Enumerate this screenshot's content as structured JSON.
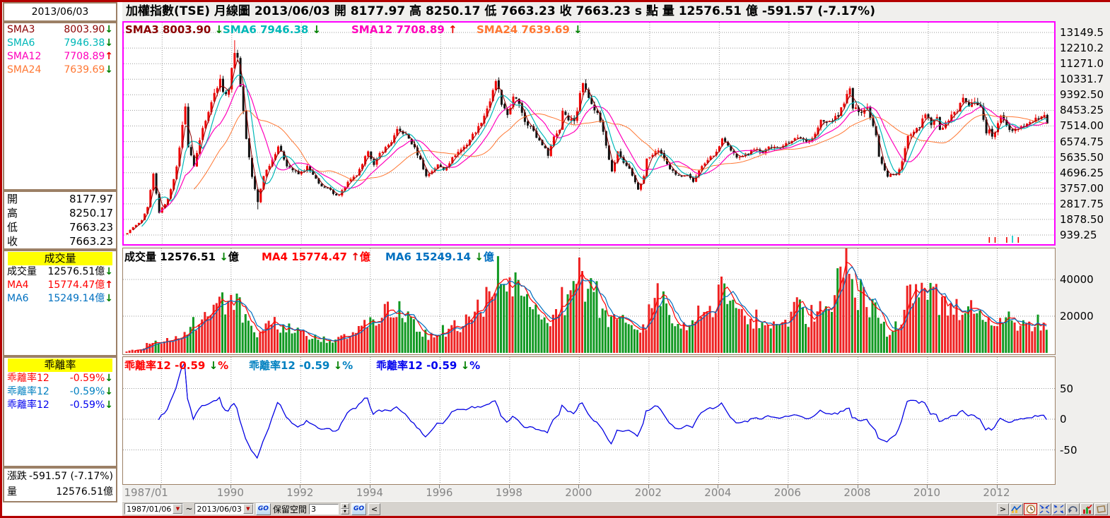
{
  "header": {
    "title_line": "加權指數(TSE)  月線圖  2013/06/03  開 8177.97  高 8250.17  低 7663.23  收 7663.23 s 點  量 12576.51 億  -591.57 (-7.17%)"
  },
  "colors": {
    "sma3": "#8b0000",
    "sma6": "#00b8b8",
    "sma12": "#ff00bb",
    "sma24": "#ff7733",
    "candle_up": "#ee0000",
    "candle_down": "#111111",
    "vol_up": "#ee2222",
    "vol_down": "#119922",
    "vol_ma4": "#ff0000",
    "vol_ma6": "#0070c0",
    "bias1": "#ff0000",
    "bias2": "#0080c0",
    "bias3": "#0000ee",
    "main_border": "#ff00ff",
    "panel_border": "#9c8066",
    "window_border": "#b40000",
    "yellow_header": "#ffff00",
    "arrow_up": "#e80000",
    "arrow_down": "#008000"
  },
  "sidebar": {
    "date": "2013/06/03",
    "sma_rows": [
      {
        "label": "SMA3",
        "value": "8003.90",
        "unit": "",
        "dir": "down",
        "color": "#8b0000"
      },
      {
        "label": "SMA6",
        "value": "7946.38",
        "unit": "",
        "dir": "down",
        "color": "#00b8b8"
      },
      {
        "label": "SMA12",
        "value": "7708.89",
        "unit": "",
        "dir": "up",
        "color": "#ff00bb"
      },
      {
        "label": "SMA24",
        "value": "7639.69",
        "unit": "",
        "dir": "down",
        "color": "#ff7733"
      }
    ],
    "ohlc_rows": [
      {
        "label": "開",
        "value": "8177.97"
      },
      {
        "label": "高",
        "value": "8250.17"
      },
      {
        "label": "低",
        "value": "7663.23"
      },
      {
        "label": "收",
        "value": "7663.23"
      }
    ],
    "volume_header": "成交量",
    "volume_rows": [
      {
        "label": "成交量",
        "value": "12576.51",
        "unit": "億",
        "dir": "down",
        "color": "#000000"
      },
      {
        "label": "MA4",
        "value": "15774.47",
        "unit": "億",
        "dir": "up",
        "color": "#ff0000"
      },
      {
        "label": "MA6",
        "value": "15249.14",
        "unit": "億",
        "dir": "down",
        "color": "#0070c0"
      }
    ],
    "bias_header": "乖離率",
    "bias_rows": [
      {
        "label": "乖離率12",
        "value": "-0.59",
        "unit": "%",
        "dir": "down",
        "color": "#ff0000"
      },
      {
        "label": "乖離率12",
        "value": "-0.59",
        "unit": "%",
        "dir": "down",
        "color": "#0080c0"
      },
      {
        "label": "乖離率12",
        "value": "-0.59",
        "unit": "%",
        "dir": "down",
        "color": "#0000ee"
      }
    ],
    "change_rows": [
      {
        "label": "漲跌",
        "value": "-591.57 (-7.17%)"
      },
      {
        "label": "量",
        "value": "12576.51億"
      }
    ]
  },
  "main_chart": {
    "legend": [
      {
        "label": "SMA3",
        "value": "8003.90",
        "unit": "",
        "dir": "down",
        "color": "#8b0000"
      },
      {
        "label": "SMA6",
        "value": "7946.38",
        "unit": "",
        "dir": "down",
        "color": "#00b8b8"
      },
      {
        "label": "SMA12",
        "value": "7708.89",
        "unit": "",
        "dir": "up",
        "color": "#ff00bb"
      },
      {
        "label": "SMA24",
        "value": "7639.69",
        "unit": "",
        "dir": "down",
        "color": "#ff7733"
      }
    ],
    "y_axis": [
      {
        "label": "13149.5",
        "value": 13149.5
      },
      {
        "label": "12210.2",
        "value": 12210.25
      },
      {
        "label": "11271.0",
        "value": 11271.0
      },
      {
        "label": "10331.7",
        "value": 10331.75
      },
      {
        "label": "9392.50",
        "value": 9392.5
      },
      {
        "label": "8453.25",
        "value": 8453.25
      },
      {
        "label": "7514.00",
        "value": 7514.0
      },
      {
        "label": "6574.75",
        "value": 6574.75
      },
      {
        "label": "5635.50",
        "value": 5635.5
      },
      {
        "label": "4696.25",
        "value": 4696.25
      },
      {
        "label": "3757.00",
        "value": 3757.0
      },
      {
        "label": "2817.75",
        "value": 2817.75
      },
      {
        "label": "1878.50",
        "value": 1878.5
      },
      {
        "label": "939.25",
        "value": 939.25
      }
    ]
  },
  "volume_chart": {
    "legend": [
      {
        "label": "成交量",
        "value": "12576.51",
        "unit": "億",
        "dir": "down",
        "color": "#000000"
      },
      {
        "label": "MA4",
        "value": "15774.47",
        "unit": "億",
        "dir": "up",
        "color": "#ff0000"
      },
      {
        "label": "MA6",
        "value": "15249.14",
        "unit": "億",
        "dir": "down",
        "color": "#0070c0"
      }
    ],
    "y_axis": [
      {
        "label": "40000",
        "value": 40000
      },
      {
        "label": "20000",
        "value": 20000
      }
    ]
  },
  "bias_chart": {
    "legend": [
      {
        "label": "乖離率12",
        "value": "-0.59",
        "unit": "%",
        "dir": "down",
        "color": "#ff0000"
      },
      {
        "label": "乖離率12",
        "value": "-0.59",
        "unit": "%",
        "dir": "down",
        "color": "#0080c0"
      },
      {
        "label": "乖離率12",
        "value": "-0.59",
        "unit": "%",
        "dir": "down",
        "color": "#0000ee"
      }
    ],
    "y_axis": [
      {
        "label": "50",
        "value": 50
      },
      {
        "label": "0",
        "value": 0
      },
      {
        "label": "-50",
        "value": -50
      }
    ]
  },
  "x_axis": {
    "labels": [
      {
        "label": "1987/01",
        "month": 7
      },
      {
        "label": "1990",
        "month": 36
      },
      {
        "label": "1992",
        "month": 60
      },
      {
        "label": "1994",
        "month": 84
      },
      {
        "label": "1996",
        "month": 108
      },
      {
        "label": "1998",
        "month": 132
      },
      {
        "label": "2000",
        "month": 156
      },
      {
        "label": "2002",
        "month": 180
      },
      {
        "label": "2004",
        "month": 204
      },
      {
        "label": "2006",
        "month": 228
      },
      {
        "label": "2008",
        "month": 252
      },
      {
        "label": "2010",
        "month": 276
      },
      {
        "label": "2012",
        "month": 300
      }
    ]
  },
  "toolbar": {
    "date_from": "1987/01/06",
    "tilde": "~",
    "date_to": "2013/06/03",
    "go_label": "GO",
    "reserve_label": "保留空間",
    "reserve_value": "3",
    "back_label": "<",
    "forward_label": ">",
    "icons": [
      "line-chart-icon",
      "clock-icon",
      "collapse-icon",
      "expand-icon",
      "undo-icon",
      "bar-chart-icon",
      "new-window-icon"
    ]
  },
  "chart_data": {
    "type": "candlestick",
    "instrument": "加權指數(TSE)",
    "timeframe": "月線圖",
    "x_range": [
      "1987/01",
      "2013/06"
    ],
    "months": 318,
    "price_axis": {
      "min": 0,
      "max": 13149.5,
      "tick_step": 939.25
    },
    "sma_periods": [
      3,
      6,
      12,
      24
    ],
    "sma_values": {
      "SMA3": 8003.9,
      "SMA6": 7946.38,
      "SMA12": 7708.89,
      "SMA24": 7639.69
    },
    "volume_ma_periods": [
      4,
      6
    ],
    "volume_ma_values": {
      "MA4": 15774.47,
      "MA6": 15249.14
    },
    "bias_period": 12,
    "bias_last": -0.59,
    "last_bar": {
      "open": 8177.97,
      "high": 8250.17,
      "low": 7663.23,
      "close": 7663.23,
      "volume": 12576.51,
      "change": -591.57,
      "change_pct": -7.17
    },
    "close_anchors": [
      [
        0,
        1063
      ],
      [
        2,
        1405
      ],
      [
        5,
        1800
      ],
      [
        7,
        2600
      ],
      [
        9,
        4600
      ],
      [
        10,
        3420
      ],
      [
        11,
        2298
      ],
      [
        14,
        3100
      ],
      [
        17,
        5000
      ],
      [
        20,
        8790
      ],
      [
        21,
        6250
      ],
      [
        23,
        5119
      ],
      [
        26,
        7390
      ],
      [
        29,
        9000
      ],
      [
        32,
        10403
      ],
      [
        33,
        9500
      ],
      [
        35,
        9624
      ],
      [
        36,
        11162
      ],
      [
        37,
        11983
      ],
      [
        38,
        11500
      ],
      [
        39,
        10000
      ],
      [
        41,
        6775
      ],
      [
        43,
        4450
      ],
      [
        45,
        2912
      ],
      [
        47,
        4530
      ],
      [
        50,
        5500
      ],
      [
        52,
        6305
      ],
      [
        55,
        5150
      ],
      [
        57,
        4855
      ],
      [
        59,
        4600
      ],
      [
        61,
        4850
      ],
      [
        62,
        5050
      ],
      [
        64,
        4550
      ],
      [
        66,
        4025
      ],
      [
        68,
        3800
      ],
      [
        70,
        3650
      ],
      [
        71,
        3377
      ],
      [
        73,
        3375
      ],
      [
        76,
        4120
      ],
      [
        79,
        4555
      ],
      [
        81,
        5150
      ],
      [
        83,
        6070
      ],
      [
        85,
        5125
      ],
      [
        87,
        5850
      ],
      [
        89,
        6200
      ],
      [
        91,
        6575
      ],
      [
        93,
        7228
      ],
      [
        95,
        7111
      ],
      [
        97,
        6750
      ],
      [
        99,
        6155
      ],
      [
        101,
        5450
      ],
      [
        103,
        4474
      ],
      [
        105,
        4810
      ],
      [
        107,
        5158
      ],
      [
        109,
        4888
      ],
      [
        111,
        5320
      ],
      [
        113,
        5800
      ],
      [
        115,
        6100
      ],
      [
        117,
        6425
      ],
      [
        119,
        6982
      ],
      [
        121,
        7434
      ],
      [
        123,
        8163
      ],
      [
        125,
        9030
      ],
      [
        127,
        10116
      ],
      [
        128,
        9756
      ],
      [
        129,
        8708
      ],
      [
        131,
        8187
      ],
      [
        133,
        9202
      ],
      [
        135,
        8900
      ],
      [
        137,
        7825
      ],
      [
        139,
        7488
      ],
      [
        141,
        6833
      ],
      [
        143,
        6418
      ],
      [
        145,
        5798
      ],
      [
        147,
        6881
      ],
      [
        149,
        7316
      ],
      [
        150,
        8467
      ],
      [
        152,
        7970
      ],
      [
        154,
        7866
      ],
      [
        155,
        8448
      ],
      [
        156,
        9437
      ],
      [
        157,
        10128
      ],
      [
        158,
        9854
      ],
      [
        160,
        8777
      ],
      [
        162,
        8265
      ],
      [
        164,
        7250
      ],
      [
        166,
        5544
      ],
      [
        167,
        4739
      ],
      [
        169,
        5936
      ],
      [
        171,
        5328
      ],
      [
        173,
        4900
      ],
      [
        175,
        4176
      ],
      [
        176,
        3636
      ],
      [
        178,
        4441
      ],
      [
        179,
        5551
      ],
      [
        181,
        5850
      ],
      [
        183,
        6065
      ],
      [
        185,
        5530
      ],
      [
        187,
        4932
      ],
      [
        189,
        4579
      ],
      [
        191,
        4452
      ],
      [
        193,
        4521
      ],
      [
        195,
        4139
      ],
      [
        197,
        4872
      ],
      [
        199,
        5250
      ],
      [
        201,
        5645
      ],
      [
        203,
        5890
      ],
      [
        205,
        6750
      ],
      [
        206,
        6522
      ],
      [
        208,
        5977
      ],
      [
        210,
        5655
      ],
      [
        212,
        5765
      ],
      [
        214,
        5845
      ],
      [
        215,
        6139
      ],
      [
        217,
        6104
      ],
      [
        219,
        5860
      ],
      [
        221,
        6241
      ],
      [
        223,
        6312
      ],
      [
        225,
        6118
      ],
      [
        227,
        6548
      ],
      [
        229,
        6561
      ],
      [
        231,
        6847
      ],
      [
        233,
        6704
      ],
      [
        235,
        6611
      ],
      [
        237,
        7021
      ],
      [
        239,
        7824
      ],
      [
        241,
        7699
      ],
      [
        243,
        7884
      ],
      [
        245,
        8145
      ],
      [
        247,
        8982
      ],
      [
        249,
        9711
      ],
      [
        250,
        8586
      ],
      [
        251,
        8506
      ],
      [
        253,
        8412
      ],
      [
        255,
        8619
      ],
      [
        257,
        7523
      ],
      [
        258,
        7024
      ],
      [
        259,
        5719
      ],
      [
        261,
        4870
      ],
      [
        262,
        4460
      ],
      [
        263,
        4591
      ],
      [
        265,
        4557
      ],
      [
        267,
        5390
      ],
      [
        269,
        6890
      ],
      [
        271,
        7077
      ],
      [
        273,
        7509
      ],
      [
        275,
        8188
      ],
      [
        277,
        7608
      ],
      [
        279,
        8004
      ],
      [
        280,
        7374
      ],
      [
        282,
        7616
      ],
      [
        284,
        8237
      ],
      [
        286,
        8372
      ],
      [
        287,
        8972
      ],
      [
        288,
        9145
      ],
      [
        290,
        8683
      ],
      [
        292,
        9062
      ],
      [
        294,
        8652
      ],
      [
        296,
        7148
      ],
      [
        297,
        7216
      ],
      [
        298,
        6904
      ],
      [
        299,
        7072
      ],
      [
        301,
        8121
      ],
      [
        302,
        7933
      ],
      [
        304,
        7301
      ],
      [
        305,
        7296
      ],
      [
        307,
        7397
      ],
      [
        309,
        7581
      ],
      [
        311,
        7700
      ],
      [
        313,
        7898
      ],
      [
        315,
        8093
      ],
      [
        316,
        8178
      ],
      [
        317,
        7663.23
      ]
    ],
    "volume_anchors": [
      [
        0,
        900
      ],
      [
        6,
        3000
      ],
      [
        10,
        8000
      ],
      [
        12,
        5000
      ],
      [
        18,
        10000
      ],
      [
        24,
        16000
      ],
      [
        30,
        22000
      ],
      [
        36,
        34000
      ],
      [
        40,
        20000
      ],
      [
        45,
        7000
      ],
      [
        50,
        16000
      ],
      [
        54,
        14000
      ],
      [
        60,
        10000
      ],
      [
        66,
        7500
      ],
      [
        72,
        6500
      ],
      [
        78,
        10000
      ],
      [
        84,
        17000
      ],
      [
        90,
        22000
      ],
      [
        93,
        26000
      ],
      [
        98,
        16000
      ],
      [
        103,
        10000
      ],
      [
        108,
        12000
      ],
      [
        114,
        14000
      ],
      [
        119,
        19000
      ],
      [
        124,
        30000
      ],
      [
        127,
        46000
      ],
      [
        130,
        30000
      ],
      [
        134,
        34000
      ],
      [
        138,
        26000
      ],
      [
        143,
        16000
      ],
      [
        146,
        14000
      ],
      [
        150,
        30000
      ],
      [
        153,
        26000
      ],
      [
        157,
        44000
      ],
      [
        158,
        40000
      ],
      [
        162,
        30000
      ],
      [
        167,
        18000
      ],
      [
        171,
        16000
      ],
      [
        176,
        10000
      ],
      [
        179,
        18000
      ],
      [
        183,
        34000
      ],
      [
        187,
        20000
      ],
      [
        191,
        13000
      ],
      [
        195,
        14000
      ],
      [
        199,
        26000
      ],
      [
        203,
        28000
      ],
      [
        206,
        36000
      ],
      [
        210,
        20000
      ],
      [
        215,
        19000
      ],
      [
        220,
        17000
      ],
      [
        225,
        15000
      ],
      [
        227,
        19000
      ],
      [
        231,
        23000
      ],
      [
        235,
        20000
      ],
      [
        239,
        26000
      ],
      [
        243,
        27000
      ],
      [
        247,
        44000
      ],
      [
        248,
        52000
      ],
      [
        251,
        30000
      ],
      [
        255,
        32000
      ],
      [
        259,
        18000
      ],
      [
        262,
        12000
      ],
      [
        265,
        15000
      ],
      [
        269,
        28000
      ],
      [
        271,
        32000
      ],
      [
        275,
        28000
      ],
      [
        279,
        30000
      ],
      [
        283,
        22000
      ],
      [
        287,
        26000
      ],
      [
        289,
        28000
      ],
      [
        293,
        26000
      ],
      [
        296,
        16000
      ],
      [
        299,
        14000
      ],
      [
        303,
        22000
      ],
      [
        305,
        15000
      ],
      [
        309,
        14000
      ],
      [
        311,
        14000
      ],
      [
        314,
        16000
      ],
      [
        317,
        12576
      ]
    ]
  }
}
